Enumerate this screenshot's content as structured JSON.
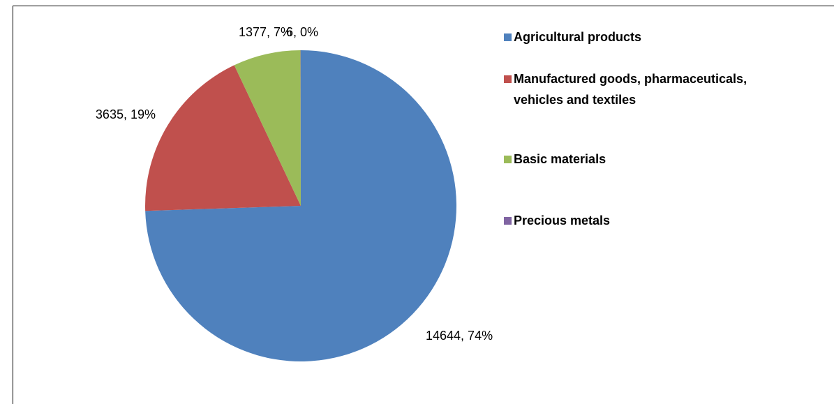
{
  "chart_data": {
    "type": "pie",
    "categories": [
      "Agricultural products",
      "Manufactured goods, pharmaceuticals, vehicles and textiles",
      "Basic materials",
      "Precious metals"
    ],
    "values": [
      14644,
      3635,
      1377,
      6
    ],
    "value_labels": [
      "14644, 74%",
      "3635, 19%",
      "1377, 7%",
      "6, 0%"
    ],
    "colors": [
      "#4f81bd",
      "#c0504d",
      "#9bbb59",
      "#8064a2"
    ],
    "legend": "right"
  }
}
